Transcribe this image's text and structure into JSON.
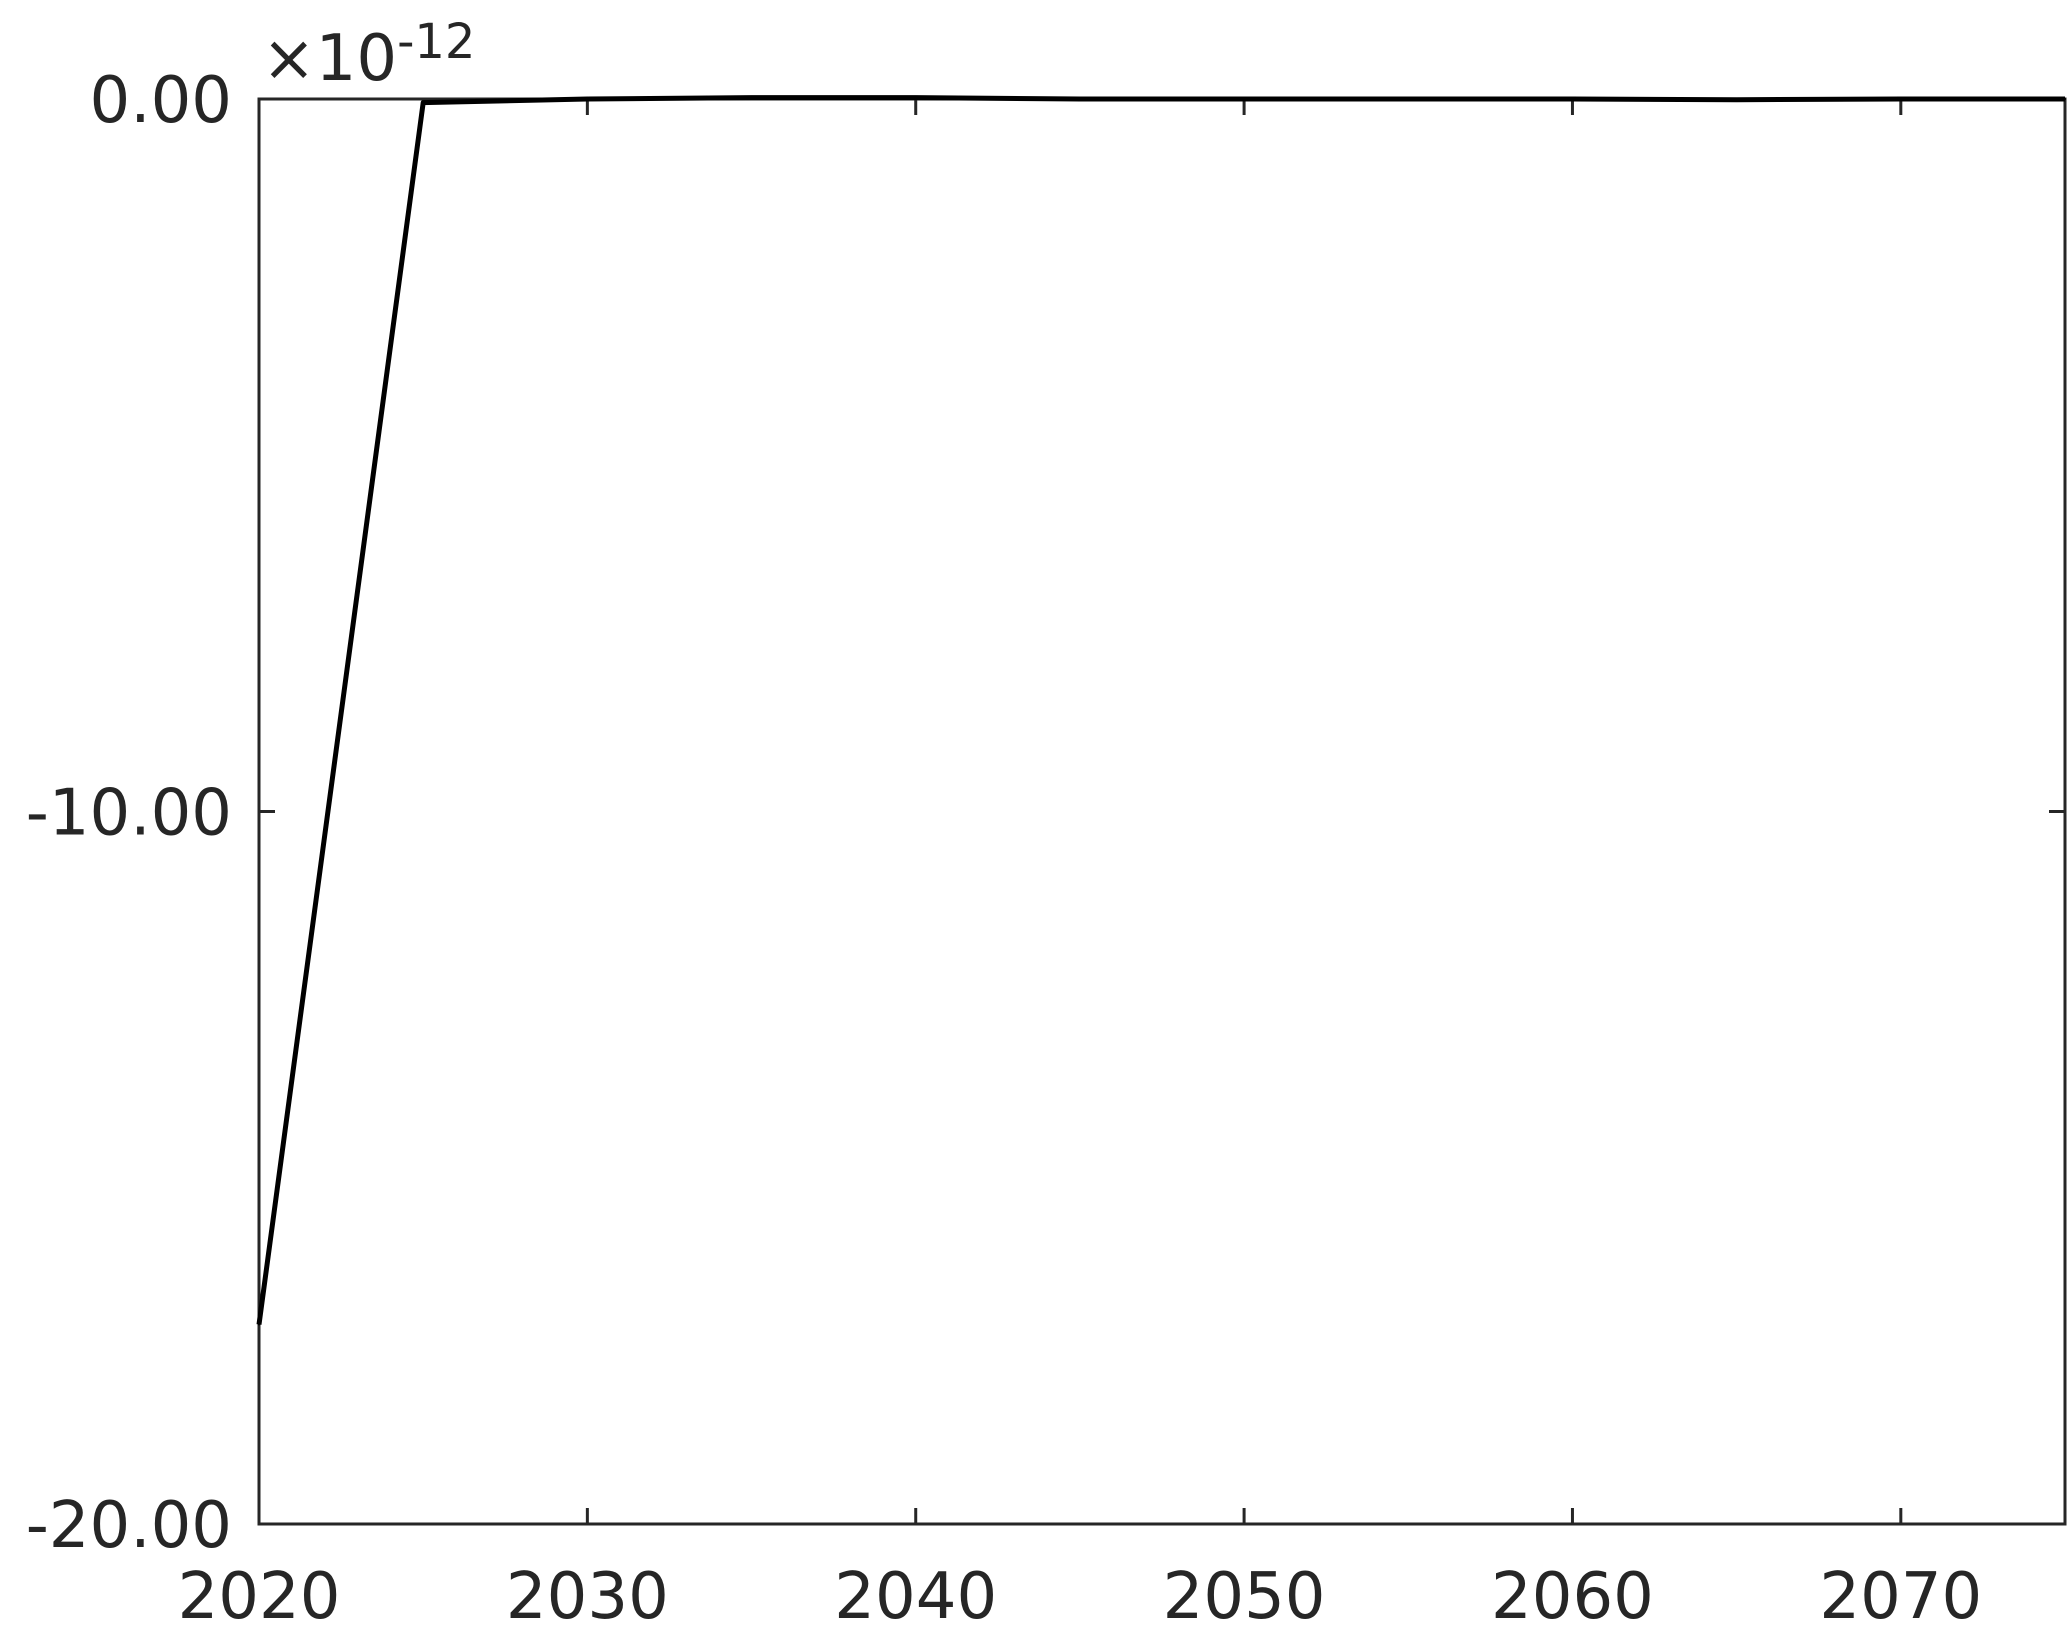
{
  "chart_data": {
    "type": "line",
    "title": "",
    "xlabel": "",
    "ylabel": "",
    "y_exponent_label": {
      "base": "×10",
      "exponent": "-12"
    },
    "xlim": [
      2020,
      2075
    ],
    "ylim": [
      -20,
      0
    ],
    "y_scale_factor": 1e-12,
    "grid": false,
    "box": true,
    "x_ticks": [
      {
        "value": 2020,
        "label": "2020"
      },
      {
        "value": 2030,
        "label": "2030"
      },
      {
        "value": 2040,
        "label": "2040"
      },
      {
        "value": 2050,
        "label": "2050"
      },
      {
        "value": 2060,
        "label": "2060"
      },
      {
        "value": 2070,
        "label": "2070"
      }
    ],
    "y_ticks": [
      {
        "value": 0,
        "label": "0.00"
      },
      {
        "value": -10,
        "label": "-10.00"
      },
      {
        "value": -20,
        "label": "-20.00"
      }
    ],
    "series": [
      {
        "color": "#000000",
        "x": [
          2020,
          2025,
          2030,
          2035,
          2040,
          2045,
          2050,
          2055,
          2060,
          2065,
          2070,
          2075
        ],
        "y": [
          -17.2,
          -0.05,
          0.0,
          0.02,
          0.02,
          0.0,
          0.0,
          0.0,
          0.0,
          -0.01,
          0.0,
          0.0
        ]
      }
    ],
    "colors": {
      "axis": "#262626",
      "line": "#000000",
      "text": "#262626"
    }
  }
}
